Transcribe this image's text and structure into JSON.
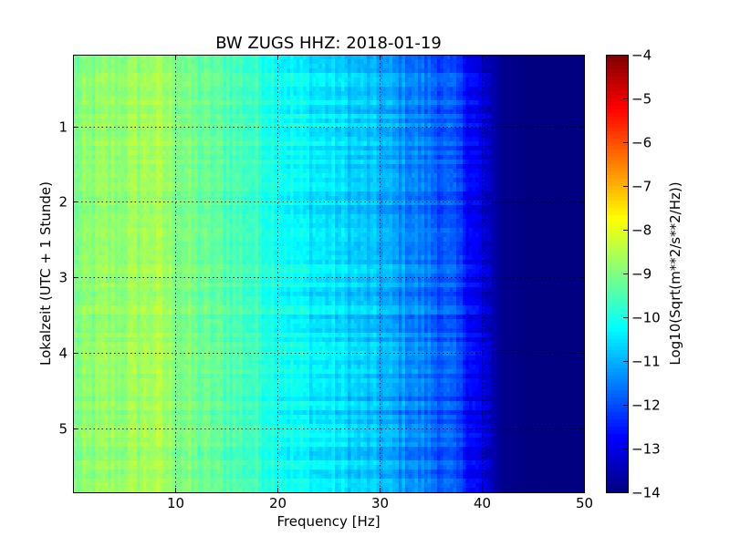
{
  "chart_data": {
    "type": "heatmap",
    "title": "BW ZUGS HHZ: 2018-01-19",
    "xlabel": "Frequency [Hz]",
    "ylabel": "Lokalzeit (UTC + 1 Stunde)",
    "xlim": [
      0,
      50
    ],
    "ylim": [
      5.85,
      0.05
    ],
    "xticks": [
      "10",
      "20",
      "30",
      "40",
      "50"
    ],
    "yticks": [
      "1",
      "2",
      "3",
      "4",
      "5"
    ],
    "grid": true,
    "colormap": "jet",
    "colorbar": {
      "label": "Log10(Sqrt(m**2/s**2/Hz))",
      "range": [
        -14,
        -4
      ],
      "ticks": [
        "-4",
        "-5",
        "-6",
        "-7",
        "-8",
        "-9",
        "-10",
        "-11",
        "-12",
        "-13",
        "-14"
      ]
    },
    "spectrum_profile": {
      "frequency_hz": [
        0,
        2,
        5,
        8,
        10,
        12,
        15,
        18,
        20,
        22,
        25,
        28,
        30,
        33,
        35,
        37,
        38,
        39,
        40,
        41,
        42,
        45,
        50
      ],
      "log10_amplitude": [
        -9.1,
        -8.9,
        -8.8,
        -8.6,
        -8.9,
        -9.2,
        -9.4,
        -9.7,
        -10.0,
        -10.3,
        -10.5,
        -10.8,
        -11.0,
        -11.4,
        -11.7,
        -12.0,
        -12.3,
        -12.7,
        -13.1,
        -13.5,
        -13.85,
        -14.0,
        -14.0
      ]
    }
  }
}
